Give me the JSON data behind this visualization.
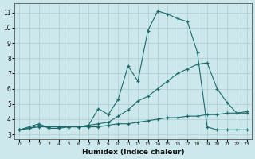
{
  "xlabel": "Humidex (Indice chaleur)",
  "bg_color": "#cce8ec",
  "line_color": "#1a6b6b",
  "grid_color": "#aacccf",
  "x_ticks": [
    0,
    1,
    2,
    3,
    4,
    5,
    6,
    7,
    8,
    9,
    10,
    11,
    12,
    13,
    14,
    15,
    16,
    17,
    18,
    19,
    20,
    21,
    22,
    23
  ],
  "y_ticks": [
    3,
    4,
    5,
    6,
    7,
    8,
    9,
    10,
    11
  ],
  "ylim": [
    2.7,
    11.6
  ],
  "xlim": [
    -0.5,
    23.5
  ],
  "series1_x": [
    0,
    1,
    2,
    3,
    4,
    5,
    6,
    7,
    8,
    9,
    10,
    11,
    12,
    13,
    14,
    15,
    16,
    17,
    18,
    19,
    20,
    21,
    22,
    23
  ],
  "series1_y": [
    3.3,
    3.5,
    3.7,
    3.4,
    3.4,
    3.5,
    3.5,
    3.6,
    4.7,
    4.3,
    5.3,
    7.5,
    6.5,
    9.8,
    11.1,
    10.9,
    10.6,
    10.4,
    8.4,
    3.5,
    3.3,
    3.3,
    3.3,
    3.3
  ],
  "series2_x": [
    0,
    1,
    2,
    3,
    4,
    5,
    6,
    7,
    8,
    9,
    10,
    11,
    12,
    13,
    14,
    15,
    16,
    17,
    18,
    19,
    20,
    21,
    22,
    23
  ],
  "series2_y": [
    3.3,
    3.4,
    3.6,
    3.5,
    3.5,
    3.5,
    3.5,
    3.6,
    3.7,
    3.8,
    4.2,
    4.6,
    5.2,
    5.5,
    6.0,
    6.5,
    7.0,
    7.3,
    7.6,
    7.7,
    6.0,
    5.1,
    4.4,
    4.4
  ],
  "series3_x": [
    0,
    1,
    2,
    3,
    4,
    5,
    6,
    7,
    8,
    9,
    10,
    11,
    12,
    13,
    14,
    15,
    16,
    17,
    18,
    19,
    20,
    21,
    22,
    23
  ],
  "series3_y": [
    3.3,
    3.4,
    3.5,
    3.5,
    3.5,
    3.5,
    3.5,
    3.5,
    3.5,
    3.6,
    3.7,
    3.7,
    3.8,
    3.9,
    4.0,
    4.1,
    4.1,
    4.2,
    4.2,
    4.3,
    4.3,
    4.4,
    4.4,
    4.5
  ]
}
